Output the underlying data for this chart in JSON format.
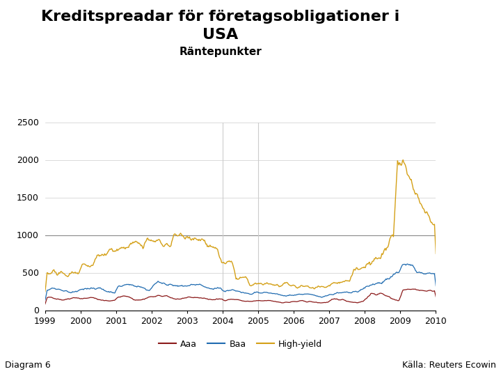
{
  "title_line1": "Kreditspreadar för företagsobligationer i",
  "title_line2": "USA",
  "subtitle": "Räntepunkter",
  "footer_left": "Diagram 6",
  "footer_right": "Källa: Reuters Ecowin",
  "ylim": [
    0,
    2500
  ],
  "yticks": [
    0,
    500,
    1000,
    1500,
    2000,
    2500
  ],
  "xmin_year": 1999,
  "xmax_year": 2010,
  "xtick_years": [
    1999,
    2000,
    2001,
    2002,
    2003,
    2004,
    2005,
    2006,
    2007,
    2008,
    2009,
    2010
  ],
  "hline_y": 1000,
  "vline_x1": 2004.0,
  "vline_x2": 2005.0,
  "legend_labels": [
    "Aaa",
    "Baa",
    "High-yield"
  ],
  "line_colors": [
    "#8b1a1a",
    "#1f6bb0",
    "#d4a017"
  ],
  "background_color": "#ffffff",
  "navbar_color": "#1a3a8c",
  "title_fontsize": 16,
  "subtitle_fontsize": 11,
  "footer_fontsize": 9,
  "legend_fontsize": 9,
  "tick_fontsize": 9
}
